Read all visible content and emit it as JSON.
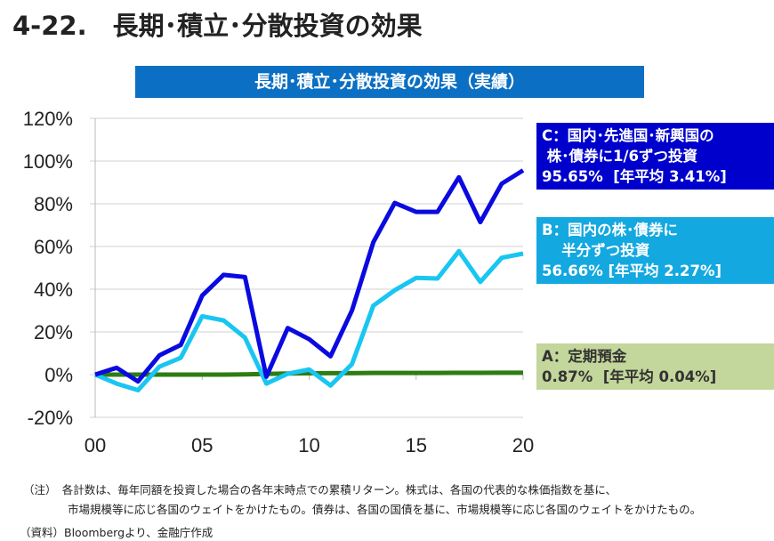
{
  "page_title": "4-22.　長期･積立･分散投資の効果",
  "chart_data": {
    "type": "line",
    "title": "長期･積立･分散投資の効果（実績）",
    "x": [
      0,
      1,
      2,
      3,
      4,
      5,
      6,
      7,
      8,
      9,
      10,
      11,
      12,
      13,
      14,
      15,
      16,
      17,
      18,
      19,
      20
    ],
    "xticks": [
      "00",
      "05",
      "10",
      "15",
      "20"
    ],
    "ylim": [
      -20,
      120
    ],
    "yticks": [
      "-20%",
      "0%",
      "20%",
      "40%",
      "60%",
      "80%",
      "100%",
      "120%"
    ],
    "grid": true,
    "series": [
      {
        "key": "A",
        "color": "#2e7d12",
        "values": [
          0,
          0,
          0,
          0,
          0,
          0,
          0,
          0.1,
          0.3,
          0.5,
          0.6,
          0.7,
          0.7,
          0.8,
          0.8,
          0.8,
          0.8,
          0.85,
          0.85,
          0.86,
          0.87
        ]
      },
      {
        "key": "B",
        "color": "#19c6f2",
        "values": [
          0,
          -4.2,
          -7.3,
          3.7,
          7.9,
          27.3,
          25.4,
          17.3,
          -4.2,
          0.4,
          2.4,
          -5.1,
          4.9,
          32.3,
          39.5,
          45.3,
          45,
          57.8,
          43.4,
          54.7,
          56.66
        ]
      },
      {
        "key": "C",
        "color": "#0a0ae0",
        "values": [
          0,
          3.2,
          -3.2,
          9,
          13.9,
          37,
          46.7,
          45.7,
          -1,
          21.8,
          16.6,
          8.6,
          30,
          62,
          80.4,
          76.2,
          76.2,
          92.4,
          71.4,
          89.4,
          95.65
        ]
      }
    ],
    "legend": {
      "C": "C：国内･先進国･新興国の\n 株･債券に1/6ずつ投資\n95.65%  [年平均 3.41%]",
      "B": "B：国内の株･債券に\n　 半分ずつ投資\n56.66% [年平均 2.27%]",
      "A": "A：定期預金\n0.87%  [年平均 0.04%]"
    },
    "legend_colors": {
      "C": "#0000cc",
      "B": "#14a8e0",
      "A": "#c3d69b"
    }
  },
  "notes": {
    "line1": "（注）　各計数は、毎年同額を投資した場合の各年末時点での累積リターン。株式は、各国の代表的な株価指数を基に、",
    "line2": "　　　　市場規模等に応じ各国のウェイトをかけたもの。債券は、各国の国債を基に、市場規模等に応じ各国のウェイトをかけたもの。",
    "source": "（資料）Bloombergより、金融庁作成"
  }
}
